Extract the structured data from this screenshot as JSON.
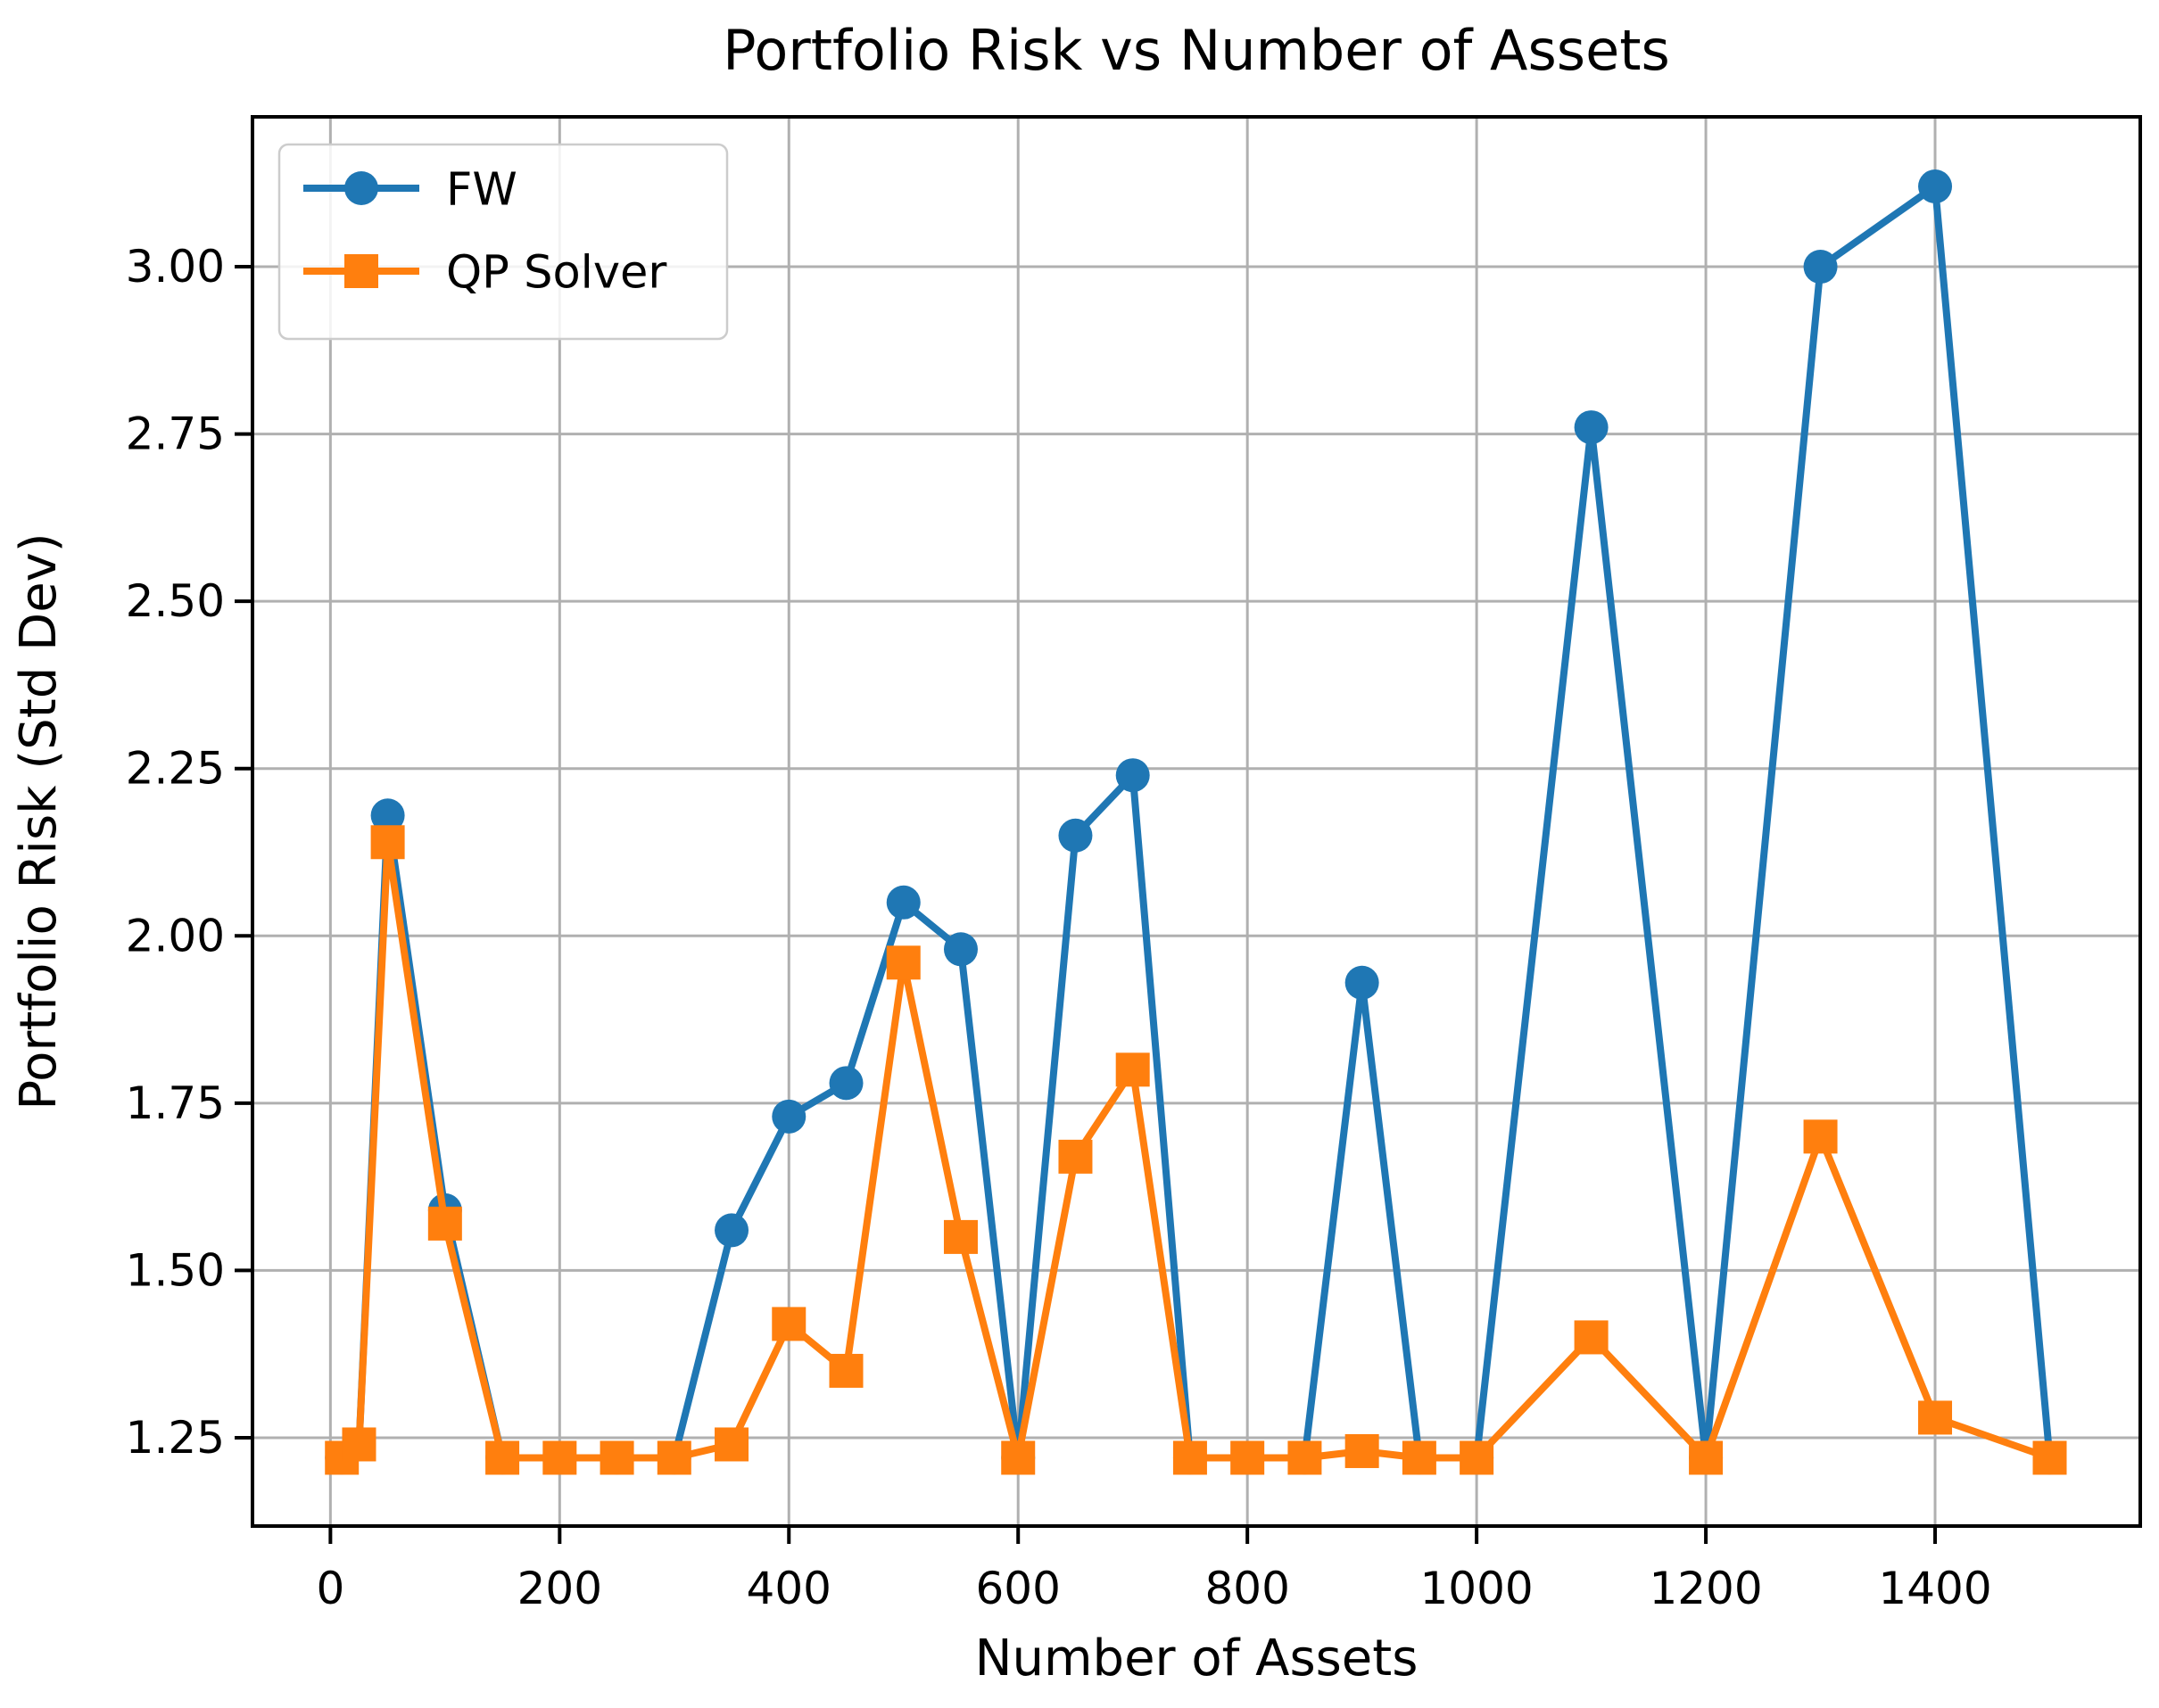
{
  "chart_data": {
    "type": "line",
    "title": "Portfolio Risk vs Number of Assets",
    "xlabel": "Number of Assets",
    "ylabel": "Portfolio Risk (Std Dev)",
    "x": [
      10,
      25,
      50,
      100,
      150,
      200,
      250,
      300,
      350,
      400,
      450,
      500,
      550,
      600,
      650,
      700,
      750,
      800,
      850,
      900,
      950,
      1000,
      1100,
      1200,
      1300,
      1400,
      1500
    ],
    "series": [
      {
        "name": "FW",
        "color": "#1f77b4",
        "marker": "circle",
        "values": [
          1.22,
          1.24,
          2.18,
          1.59,
          1.22,
          1.22,
          1.22,
          1.22,
          1.56,
          1.73,
          1.78,
          2.05,
          1.98,
          1.22,
          2.15,
          2.24,
          1.22,
          1.22,
          1.22,
          1.93,
          1.22,
          1.22,
          2.76,
          1.22,
          3.0,
          3.12,
          1.22
        ]
      },
      {
        "name": "QP Solver",
        "color": "#ff7f0e",
        "marker": "square",
        "values": [
          1.22,
          1.24,
          2.14,
          1.57,
          1.22,
          1.22,
          1.22,
          1.22,
          1.24,
          1.42,
          1.35,
          1.96,
          1.55,
          1.22,
          1.67,
          1.8,
          1.22,
          1.22,
          1.22,
          1.23,
          1.22,
          1.22,
          1.4,
          1.22,
          1.7,
          1.28,
          1.22
        ]
      }
    ],
    "xlim": [
      -68,
      1579
    ],
    "ylim": [
      1.118,
      3.224
    ],
    "xticks": [
      0,
      200,
      400,
      600,
      800,
      1000,
      1200,
      1400
    ],
    "xtick_labels": [
      "0",
      "200",
      "400",
      "600",
      "800",
      "1000",
      "1200",
      "1400"
    ],
    "yticks": [
      1.25,
      1.5,
      1.75,
      2.0,
      2.25,
      2.5,
      2.75,
      3.0
    ],
    "ytick_labels": [
      "1.25",
      "1.50",
      "1.75",
      "2.00",
      "2.25",
      "2.50",
      "2.75",
      "3.00"
    ],
    "grid": true,
    "grid_color": "#b0b0b0",
    "spine_color": "#000000",
    "legend_position": "upper left"
  }
}
